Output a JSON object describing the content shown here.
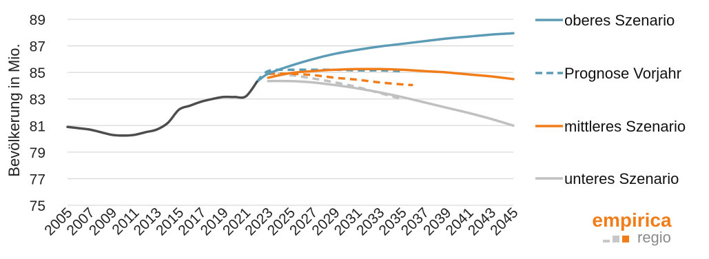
{
  "chart_data": {
    "type": "line",
    "ylabel": "Bevölkerung in Mio.",
    "xlabel": "",
    "ylim": [
      75,
      89
    ],
    "yticks": [
      "75",
      "77",
      "79",
      "81",
      "83",
      "85",
      "87",
      "89"
    ],
    "xlim": [
      2005,
      2045
    ],
    "xticks": [
      "2005",
      "2007",
      "2009",
      "2011",
      "2013",
      "2015",
      "2017",
      "2019",
      "2021",
      "2023",
      "2025",
      "2027",
      "2029",
      "2031",
      "2033",
      "2035",
      "2037",
      "2039",
      "2041",
      "2043",
      "2045"
    ],
    "grid": true,
    "legend_position": "right",
    "series": [
      {
        "name": "",
        "color": "#4d4d4d",
        "dash": "solid",
        "points": [
          [
            2005,
            80.9
          ],
          [
            2006,
            80.8
          ],
          [
            2007,
            80.7
          ],
          [
            2008,
            80.5
          ],
          [
            2009,
            80.3
          ],
          [
            2010,
            80.25
          ],
          [
            2011,
            80.3
          ],
          [
            2012,
            80.5
          ],
          [
            2013,
            80.7
          ],
          [
            2014,
            81.2
          ],
          [
            2015,
            82.2
          ],
          [
            2016,
            82.5
          ],
          [
            2017,
            82.8
          ],
          [
            2018,
            83.0
          ],
          [
            2019,
            83.15
          ],
          [
            2020,
            83.15
          ],
          [
            2021,
            83.2
          ],
          [
            2022,
            84.3
          ]
        ]
      },
      {
        "name": "oberes Szenario",
        "color": "#5b9bb5",
        "dash": "solid",
        "points": [
          [
            2022,
            84.3
          ],
          [
            2023,
            84.9
          ],
          [
            2025,
            85.5
          ],
          [
            2027,
            86.0
          ],
          [
            2029,
            86.4
          ],
          [
            2031,
            86.7
          ],
          [
            2033,
            86.95
          ],
          [
            2035,
            87.15
          ],
          [
            2037,
            87.35
          ],
          [
            2039,
            87.55
          ],
          [
            2041,
            87.7
          ],
          [
            2043,
            87.85
          ],
          [
            2045,
            87.95
          ]
        ]
      },
      {
        "name": "Prognose Vorjahr",
        "color": "#5b9bb5",
        "dash": "dashed",
        "points": [
          [
            2022,
            84.3
          ],
          [
            2023,
            85.1
          ],
          [
            2025,
            85.2
          ],
          [
            2027,
            85.2
          ],
          [
            2029,
            85.2
          ],
          [
            2031,
            85.15
          ],
          [
            2033,
            85.15
          ],
          [
            2035,
            85.1
          ]
        ]
      },
      {
        "name": "mittleres Szenario",
        "color": "#f07d1a",
        "dash": "solid",
        "points": [
          [
            2023,
            84.6
          ],
          [
            2025,
            84.95
          ],
          [
            2027,
            85.1
          ],
          [
            2029,
            85.2
          ],
          [
            2031,
            85.25
          ],
          [
            2033,
            85.25
          ],
          [
            2035,
            85.2
          ],
          [
            2037,
            85.1
          ],
          [
            2039,
            85.0
          ],
          [
            2041,
            84.85
          ],
          [
            2043,
            84.7
          ],
          [
            2045,
            84.5
          ]
        ]
      },
      {
        "name": "",
        "color": "#f07d1a",
        "dash": "dashed",
        "points": [
          [
            2023,
            84.9
          ],
          [
            2025,
            84.9
          ],
          [
            2027,
            84.8
          ],
          [
            2029,
            84.6
          ],
          [
            2031,
            84.45
          ],
          [
            2033,
            84.25
          ],
          [
            2035,
            84.1
          ],
          [
            2036,
            84.05
          ]
        ]
      },
      {
        "name": "unteres Szenario",
        "color": "#c0c0c0",
        "dash": "solid",
        "points": [
          [
            2023,
            84.35
          ],
          [
            2025,
            84.35
          ],
          [
            2027,
            84.25
          ],
          [
            2029,
            84.05
          ],
          [
            2031,
            83.8
          ],
          [
            2033,
            83.5
          ],
          [
            2035,
            83.15
          ],
          [
            2037,
            82.75
          ],
          [
            2039,
            82.35
          ],
          [
            2041,
            81.95
          ],
          [
            2043,
            81.5
          ],
          [
            2045,
            81.0
          ]
        ]
      },
      {
        "name": "",
        "color": "#c0c0c0",
        "dash": "dashed",
        "points": [
          [
            2022,
            84.3
          ],
          [
            2023,
            84.9
          ],
          [
            2025,
            84.8
          ],
          [
            2027,
            84.55
          ],
          [
            2029,
            84.25
          ],
          [
            2031,
            83.9
          ],
          [
            2033,
            83.45
          ],
          [
            2035,
            83.0
          ]
        ]
      }
    ]
  },
  "legend": [
    {
      "label": "oberes Szenario",
      "color": "#5b9bb5",
      "dash": "solid"
    },
    {
      "label": "Prognose Vorjahr",
      "color": "#5b9bb5",
      "dash": "dashed"
    },
    {
      "label": "mittleres Szenario",
      "color": "#f07d1a",
      "dash": "solid"
    },
    {
      "label": "unteres Szenario",
      "color": "#c0c0c0",
      "dash": "solid"
    }
  ],
  "logo": {
    "main": "empirica",
    "sub": "regio"
  }
}
